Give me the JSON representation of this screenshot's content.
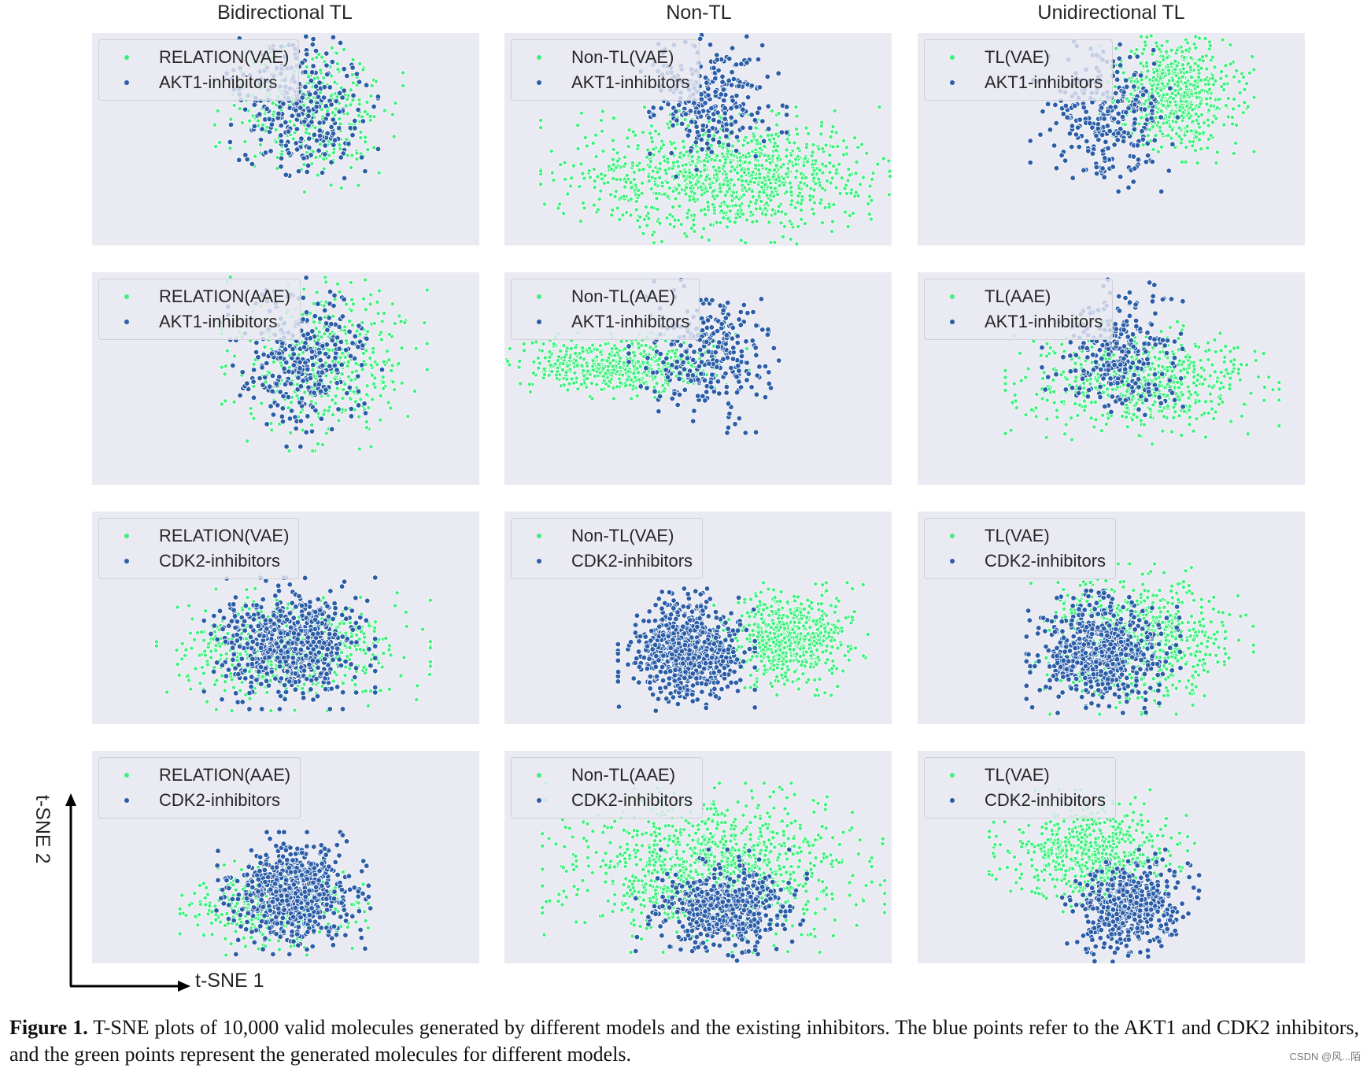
{
  "colors": {
    "generated": "#3ff07e",
    "inhibitors": "#2c5ea8",
    "panel_bg": "#eaeaf2"
  },
  "column_titles": [
    "Bidirectional TL",
    "Non-TL",
    "Unidirectional TL"
  ],
  "axes": {
    "x_label": "t-SNE 1",
    "y_label": "t-SNE 2"
  },
  "caption": {
    "label": "Figure 1.",
    "text": " T-SNE plots of 10,000 valid molecules generated by different models and the existing inhibitors. The blue points refer to the AKT1 and CDK2 inhibitors, and the green points represent the generated molecules for different models."
  },
  "watermark": "CSDN @风...陌",
  "chart_data": [
    {
      "type": "scatter",
      "row": 0,
      "col": 0,
      "legend": [
        "RELATION(VAE)",
        "AKT1-inhibitors"
      ],
      "xlabel": "t-SNE 1",
      "ylabel": "t-SNE 2",
      "series": [
        {
          "name": "RELATION(VAE)",
          "color": "green",
          "n": 420,
          "center": [
            0.56,
            0.36
          ],
          "spread": [
            0.11,
            0.18
          ]
        },
        {
          "name": "AKT1-inhibitors",
          "color": "blue",
          "n": 300,
          "center": [
            0.54,
            0.33
          ],
          "spread": [
            0.09,
            0.19
          ]
        }
      ]
    },
    {
      "type": "scatter",
      "row": 0,
      "col": 1,
      "legend": [
        "Non-TL(VAE)",
        "AKT1-inhibitors"
      ],
      "xlabel": "t-SNE 1",
      "ylabel": "t-SNE 2",
      "series": [
        {
          "name": "Non-TL(VAE)",
          "color": "green",
          "n": 1100,
          "center": [
            0.58,
            0.68
          ],
          "spread": [
            0.22,
            0.15
          ]
        },
        {
          "name": "AKT1-inhibitors",
          "color": "blue",
          "n": 300,
          "center": [
            0.53,
            0.3
          ],
          "spread": [
            0.09,
            0.17
          ]
        }
      ]
    },
    {
      "type": "scatter",
      "row": 0,
      "col": 2,
      "legend": [
        "TL(VAE)",
        "AKT1-inhibitors"
      ],
      "xlabel": "t-SNE 1",
      "ylabel": "t-SNE 2",
      "series": [
        {
          "name": "TL(VAE)",
          "color": "green",
          "n": 650,
          "center": [
            0.67,
            0.28
          ],
          "spread": [
            0.09,
            0.15
          ]
        },
        {
          "name": "AKT1-inhibitors",
          "color": "blue",
          "n": 300,
          "center": [
            0.49,
            0.37
          ],
          "spread": [
            0.09,
            0.17
          ]
        }
      ]
    },
    {
      "type": "scatter",
      "row": 1,
      "col": 0,
      "legend": [
        "RELATION(AAE)",
        "AKT1-inhibitors"
      ],
      "xlabel": "t-SNE 1",
      "ylabel": "t-SNE 2",
      "series": [
        {
          "name": "RELATION(AAE)",
          "color": "green",
          "n": 500,
          "center": [
            0.6,
            0.42
          ],
          "spread": [
            0.12,
            0.19
          ]
        },
        {
          "name": "AKT1-inhibitors",
          "color": "blue",
          "n": 300,
          "center": [
            0.55,
            0.4
          ],
          "spread": [
            0.09,
            0.19
          ]
        }
      ]
    },
    {
      "type": "scatter",
      "row": 1,
      "col": 1,
      "legend": [
        "Non-TL(AAE)",
        "AKT1-inhibitors"
      ],
      "xlabel": "t-SNE 1",
      "ylabel": "t-SNE 2",
      "series": [
        {
          "name": "Non-TL(AAE)",
          "color": "green",
          "n": 600,
          "center": [
            0.3,
            0.44
          ],
          "spread": [
            0.15,
            0.07
          ]
        },
        {
          "name": "AKT1-inhibitors",
          "color": "blue",
          "n": 300,
          "center": [
            0.52,
            0.38
          ],
          "spread": [
            0.09,
            0.17
          ]
        }
      ]
    },
    {
      "type": "scatter",
      "row": 1,
      "col": 2,
      "legend": [
        "TL(AAE)",
        "AKT1-inhibitors"
      ],
      "xlabel": "t-SNE 1",
      "ylabel": "t-SNE 2",
      "series": [
        {
          "name": "TL(AAE)",
          "color": "green",
          "n": 650,
          "center": [
            0.58,
            0.52
          ],
          "spread": [
            0.16,
            0.13
          ]
        },
        {
          "name": "AKT1-inhibitors",
          "color": "blue",
          "n": 300,
          "center": [
            0.52,
            0.38
          ],
          "spread": [
            0.09,
            0.17
          ]
        }
      ]
    },
    {
      "type": "scatter",
      "row": 2,
      "col": 0,
      "legend": [
        "RELATION(VAE)",
        "CDK2-inhibitors"
      ],
      "xlabel": "t-SNE 1",
      "ylabel": "t-SNE 2",
      "series": [
        {
          "name": "RELATION(VAE)",
          "color": "green",
          "n": 650,
          "center": [
            0.52,
            0.65
          ],
          "spread": [
            0.16,
            0.13
          ]
        },
        {
          "name": "CDK2-inhibitors",
          "color": "blue",
          "n": 600,
          "center": [
            0.51,
            0.62
          ],
          "spread": [
            0.1,
            0.14
          ]
        }
      ]
    },
    {
      "type": "scatter",
      "row": 2,
      "col": 1,
      "legend": [
        "Non-TL(VAE)",
        "CDK2-inhibitors"
      ],
      "xlabel": "t-SNE 1",
      "ylabel": "t-SNE 2",
      "series": [
        {
          "name": "Non-TL(VAE)",
          "color": "green",
          "n": 650,
          "center": [
            0.74,
            0.6
          ],
          "spread": [
            0.09,
            0.12
          ]
        },
        {
          "name": "CDK2-inhibitors",
          "color": "blue",
          "n": 700,
          "center": [
            0.47,
            0.65
          ],
          "spread": [
            0.08,
            0.13
          ]
        }
      ]
    },
    {
      "type": "scatter",
      "row": 2,
      "col": 2,
      "legend": [
        "TL(VAE)",
        "CDK2-inhibitors"
      ],
      "xlabel": "t-SNE 1",
      "ylabel": "t-SNE 2",
      "series": [
        {
          "name": "TL(VAE)",
          "color": "green",
          "n": 750,
          "center": [
            0.58,
            0.6
          ],
          "spread": [
            0.13,
            0.16
          ]
        },
        {
          "name": "CDK2-inhibitors",
          "color": "blue",
          "n": 650,
          "center": [
            0.48,
            0.66
          ],
          "spread": [
            0.09,
            0.13
          ]
        }
      ]
    },
    {
      "type": "scatter",
      "row": 3,
      "col": 0,
      "legend": [
        "RELATION(AAE)",
        "CDK2-inhibitors"
      ],
      "xlabel": "t-SNE 1",
      "ylabel": "t-SNE 2",
      "series": [
        {
          "name": "RELATION(AAE)",
          "color": "green",
          "n": 450,
          "center": [
            0.47,
            0.74
          ],
          "spread": [
            0.11,
            0.1
          ]
        },
        {
          "name": "CDK2-inhibitors",
          "color": "blue",
          "n": 650,
          "center": [
            0.52,
            0.67
          ],
          "spread": [
            0.09,
            0.13
          ]
        }
      ]
    },
    {
      "type": "scatter",
      "row": 3,
      "col": 1,
      "legend": [
        "Non-TL(AAE)",
        "CDK2-inhibitors"
      ],
      "xlabel": "t-SNE 1",
      "ylabel": "t-SNE 2",
      "series": [
        {
          "name": "Non-TL(AAE)",
          "color": "green",
          "n": 1100,
          "center": [
            0.54,
            0.55
          ],
          "spread": [
            0.2,
            0.18
          ]
        },
        {
          "name": "CDK2-inhibitors",
          "color": "blue",
          "n": 550,
          "center": [
            0.56,
            0.73
          ],
          "spread": [
            0.1,
            0.12
          ]
        }
      ]
    },
    {
      "type": "scatter",
      "row": 3,
      "col": 2,
      "legend": [
        "TL(VAE)",
        "CDK2-inhibitors"
      ],
      "xlabel": "t-SNE 1",
      "ylabel": "t-SNE 2",
      "series": [
        {
          "name": "TL(VAE)",
          "color": "green",
          "n": 650,
          "center": [
            0.45,
            0.47
          ],
          "spread": [
            0.12,
            0.13
          ]
        },
        {
          "name": "CDK2-inhibitors",
          "color": "blue",
          "n": 500,
          "center": [
            0.55,
            0.73
          ],
          "spread": [
            0.08,
            0.12
          ]
        }
      ]
    }
  ]
}
